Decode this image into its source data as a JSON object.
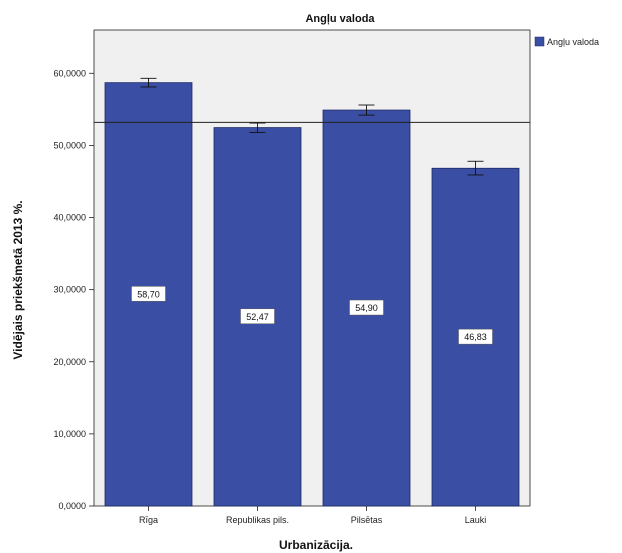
{
  "chart_data": {
    "type": "bar",
    "title": "Angļu valoda",
    "xlabel": "Urbanizācija.",
    "ylabel": "Vidējais priekšmetā 2013 %.",
    "categories": [
      "Rīga",
      "Republikas pils.",
      "Pilsētas",
      "Lauki"
    ],
    "series": [
      {
        "name": "Angļu valoda",
        "values": [
          58.7,
          52.47,
          54.9,
          46.83
        ],
        "labels": [
          "58,70",
          "52,47",
          "54,90",
          "46,83"
        ],
        "error_low": [
          58.1,
          51.8,
          54.2,
          45.9
        ],
        "error_high": [
          59.3,
          53.1,
          55.6,
          47.8
        ]
      }
    ],
    "reference_line": 53.2,
    "ylim": [
      0,
      66
    ],
    "yticks": [
      0,
      10,
      20,
      30,
      40,
      50,
      60
    ],
    "ytick_labels": [
      "0,0000",
      "10,0000",
      "20,0000",
      "30,0000",
      "40,0000",
      "50,0000",
      "60,0000"
    ],
    "colors": {
      "bar": "#3a4ea3",
      "plot_bg": "#f0f0f0",
      "bar_edge": "#1e2a66"
    },
    "legend": "top-right",
    "grid": false
  }
}
